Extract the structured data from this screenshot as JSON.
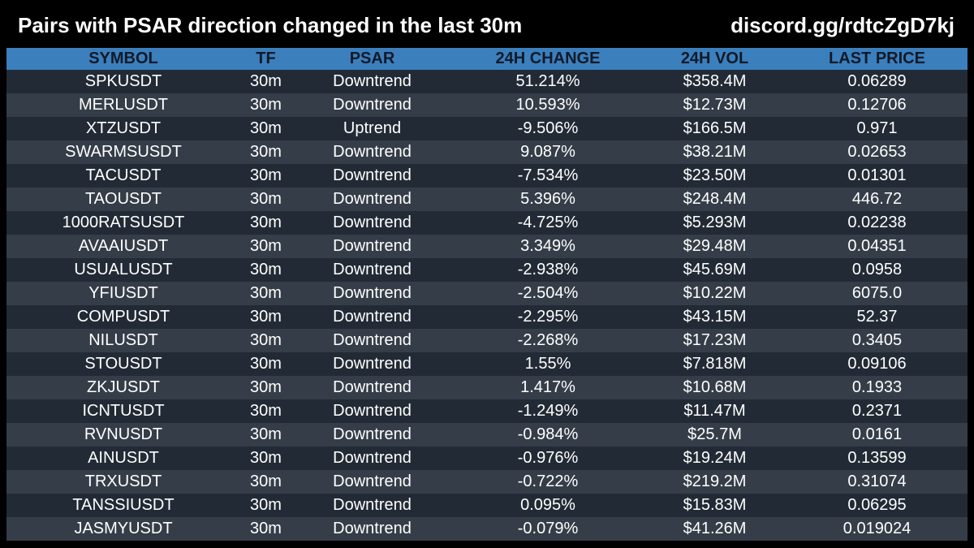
{
  "header": {
    "title": "Pairs with PSAR direction changed in the last 30m",
    "link": "discord.gg/rdtcZgD7kj"
  },
  "colors": {
    "header_bg": "#3b7fbd",
    "row_odd": "#222b35",
    "row_even": "#353e48",
    "page_bg": "#000000"
  },
  "table": {
    "columns": [
      "SYMBOL",
      "TF",
      "PSAR",
      "24H CHANGE",
      "24H VOL",
      "LAST PRICE"
    ],
    "rows": [
      [
        "SPKUSDT",
        "30m",
        "Downtrend",
        "51.214%",
        "$358.4M",
        "0.06289"
      ],
      [
        "MERLUSDT",
        "30m",
        "Downtrend",
        "10.593%",
        "$12.73M",
        "0.12706"
      ],
      [
        "XTZUSDT",
        "30m",
        "Uptrend",
        "-9.506%",
        "$166.5M",
        "0.971"
      ],
      [
        "SWARMSUSDT",
        "30m",
        "Downtrend",
        "9.087%",
        "$38.21M",
        "0.02653"
      ],
      [
        "TACUSDT",
        "30m",
        "Downtrend",
        "-7.534%",
        "$23.50M",
        "0.01301"
      ],
      [
        "TAOUSDT",
        "30m",
        "Downtrend",
        "5.396%",
        "$248.4M",
        "446.72"
      ],
      [
        "1000RATSUSDT",
        "30m",
        "Downtrend",
        "-4.725%",
        "$5.293M",
        "0.02238"
      ],
      [
        "AVAAIUSDT",
        "30m",
        "Downtrend",
        "3.349%",
        "$29.48M",
        "0.04351"
      ],
      [
        "USUALUSDT",
        "30m",
        "Downtrend",
        "-2.938%",
        "$45.69M",
        "0.0958"
      ],
      [
        "YFIUSDT",
        "30m",
        "Downtrend",
        "-2.504%",
        "$10.22M",
        "6075.0"
      ],
      [
        "COMPUSDT",
        "30m",
        "Downtrend",
        "-2.295%",
        "$43.15M",
        "52.37"
      ],
      [
        "NILUSDT",
        "30m",
        "Downtrend",
        "-2.268%",
        "$17.23M",
        "0.3405"
      ],
      [
        "STOUSDT",
        "30m",
        "Downtrend",
        "1.55%",
        "$7.818M",
        "0.09106"
      ],
      [
        "ZKJUSDT",
        "30m",
        "Downtrend",
        "1.417%",
        "$10.68M",
        "0.1933"
      ],
      [
        "ICNTUSDT",
        "30m",
        "Downtrend",
        "-1.249%",
        "$11.47M",
        "0.2371"
      ],
      [
        "RVNUSDT",
        "30m",
        "Downtrend",
        "-0.984%",
        "$25.7M",
        "0.0161"
      ],
      [
        "AINUSDT",
        "30m",
        "Downtrend",
        "-0.976%",
        "$19.24M",
        "0.13599"
      ],
      [
        "TRXUSDT",
        "30m",
        "Downtrend",
        "-0.722%",
        "$219.2M",
        "0.31074"
      ],
      [
        "TANSSIUSDT",
        "30m",
        "Downtrend",
        "0.095%",
        "$15.83M",
        "0.06295"
      ],
      [
        "JASMYUSDT",
        "30m",
        "Downtrend",
        "-0.079%",
        "$41.26M",
        "0.019024"
      ]
    ]
  }
}
